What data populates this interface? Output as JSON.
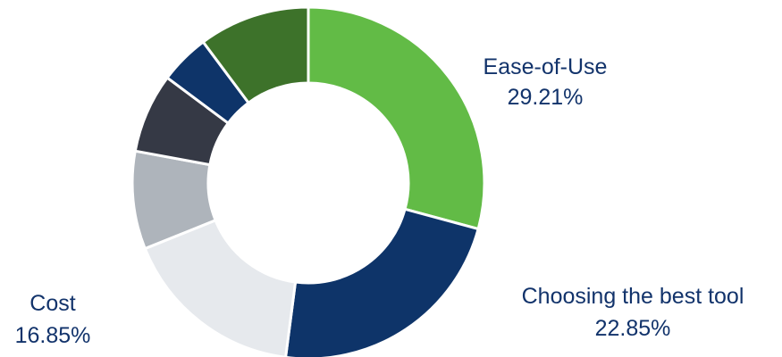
{
  "chart_data": {
    "type": "pie",
    "variant": "donut",
    "title": "",
    "slices": [
      {
        "label": "Ease-of-Use",
        "value": 29.21,
        "display_value": "29.21%",
        "color": "#62bb46",
        "labeled": true
      },
      {
        "label": "Choosing the best tool",
        "value": 22.85,
        "display_value": "22.85%",
        "color": "#0e3469",
        "labeled": true
      },
      {
        "label": "Cost",
        "value": 16.85,
        "display_value": "16.85%",
        "color": "#e6e9ed",
        "labeled": true
      },
      {
        "label": "",
        "value": 9.0,
        "display_value": "",
        "color": "#aeb4bb",
        "labeled": false
      },
      {
        "label": "",
        "value": 7.3,
        "display_value": "",
        "color": "#353945",
        "labeled": false
      },
      {
        "label": "",
        "value": 4.6,
        "display_value": "",
        "color": "#0e3469",
        "labeled": false
      },
      {
        "label": "",
        "value": 10.19,
        "display_value": "",
        "color": "#3d722a",
        "labeled": false
      }
    ],
    "start_angle_deg": 0,
    "direction": "clockwise",
    "legend": "none",
    "label_color": "#12336b"
  }
}
